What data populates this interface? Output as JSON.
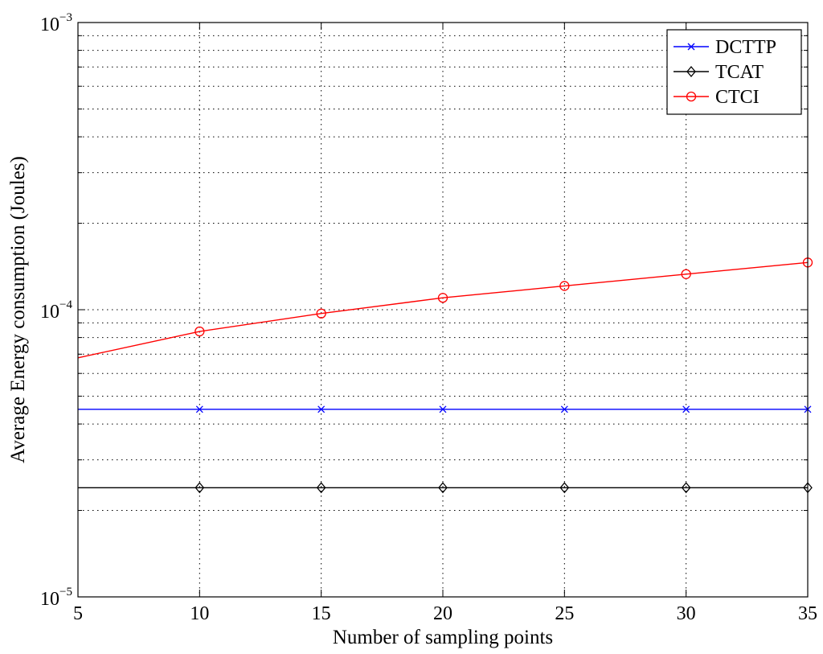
{
  "chart_data": {
    "type": "line",
    "title": "",
    "xlabel": "Number of sampling points",
    "ylabel": "Average Energy consumption (Joules)",
    "x": [
      5,
      10,
      15,
      20,
      25,
      30,
      35
    ],
    "x_ticks": [
      5,
      10,
      15,
      20,
      25,
      30,
      35
    ],
    "xlim": [
      5,
      35
    ],
    "ylim": [
      1e-05,
      0.001
    ],
    "yscale": "log",
    "y_ticks": [
      {
        "value": 1e-05,
        "base": "10",
        "exp": "−5"
      },
      {
        "value": 0.0001,
        "base": "10",
        "exp": "−4"
      },
      {
        "value": 0.001,
        "base": "10",
        "exp": "−3"
      }
    ],
    "grid": true,
    "legend_position": "top-right",
    "series": [
      {
        "name": "DCTTP",
        "color": "#0000ff",
        "marker": "x",
        "values": [
          4.5e-05,
          4.5e-05,
          4.5e-05,
          4.5e-05,
          4.5e-05,
          4.5e-05,
          4.5e-05
        ]
      },
      {
        "name": "TCAT",
        "color": "#000000",
        "marker": "diamond",
        "values": [
          2.4e-05,
          2.4e-05,
          2.4e-05,
          2.4e-05,
          2.4e-05,
          2.4e-05,
          2.4e-05
        ]
      },
      {
        "name": "CTCI",
        "color": "#ff0000",
        "marker": "circle",
        "values": [
          6.8e-05,
          8.4e-05,
          9.7e-05,
          0.00011,
          0.000121,
          0.000133,
          0.000146
        ]
      }
    ]
  }
}
